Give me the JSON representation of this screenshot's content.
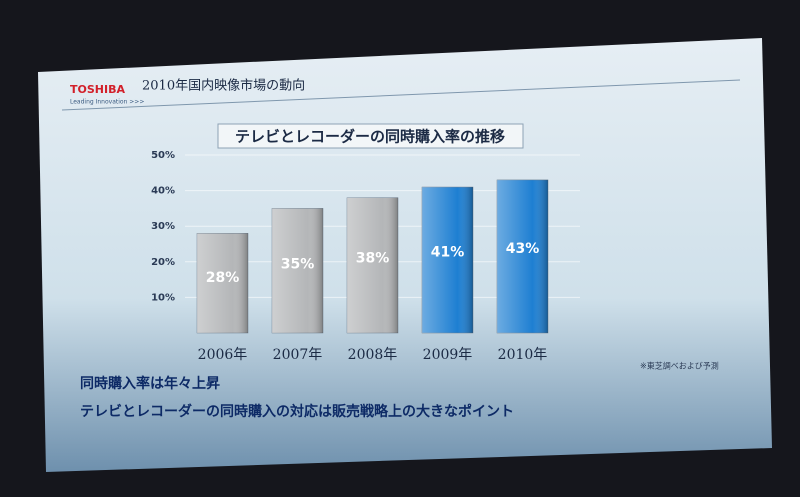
{
  "slide": {
    "brand": "TOSHIBA",
    "tagline": "Leading Innovation >>>",
    "heading": "2010年国内映像市場の動向",
    "bullets": [
      "同時購入率は年々上昇",
      "テレビとレコーダーの同時購入の対応は販売戦略上の大きなポイント"
    ]
  },
  "chart_data": {
    "type": "bar",
    "title": "テレビとレコーダーの同時購入率の推移",
    "categories": [
      "2006年",
      "2007年",
      "2008年",
      "2009年",
      "2010年"
    ],
    "values": [
      28,
      35,
      38,
      41,
      43
    ],
    "value_labels": [
      "28%",
      "35%",
      "38%",
      "41%",
      "43%"
    ],
    "colors": [
      "#b4b6b8",
      "#b4b6b8",
      "#b4b6b8",
      "#1e7fd2",
      "#1e7fd2"
    ],
    "ylim": [
      0,
      50
    ],
    "yticks": [
      {
        "value": 10,
        "label": "10%"
      },
      {
        "value": 20,
        "label": "20%"
      },
      {
        "value": 30,
        "label": "30%"
      },
      {
        "value": 40,
        "label": "40%"
      },
      {
        "value": 50,
        "label": "50%"
      }
    ],
    "grid": true,
    "annotations": [
      "※東芝調べおよび予測"
    ]
  }
}
